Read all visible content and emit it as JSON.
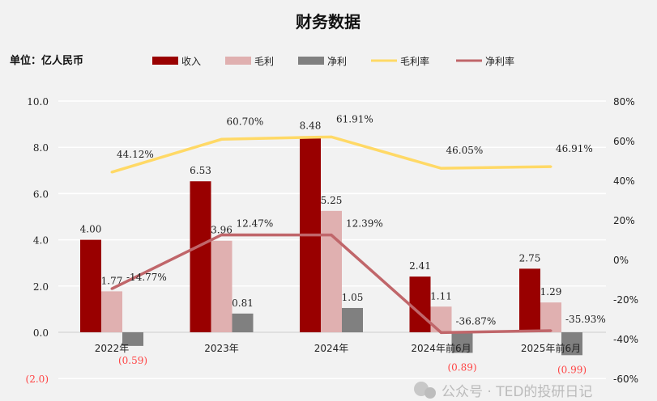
{
  "chart_data": {
    "type": "bar",
    "title": "财务数据",
    "unit_label": "单位：亿人民币",
    "categories": [
      "2022年",
      "2023年",
      "2024年",
      "2024年前6月",
      "2025年前6月"
    ],
    "series": [
      {
        "name": "收入",
        "kind": "bar",
        "axis": "left",
        "color": "#990000",
        "values": [
          4.0,
          6.53,
          8.48,
          2.41,
          2.75
        ],
        "labels": [
          "4.00",
          "6.53",
          "8.48",
          "2.41",
          "2.75"
        ]
      },
      {
        "name": "毛利",
        "kind": "bar",
        "axis": "left",
        "color": "#e0b0b0",
        "values": [
          1.77,
          3.96,
          5.25,
          1.11,
          1.29
        ],
        "labels": [
          "1.77",
          "3.96",
          "5.25",
          "1.11",
          "1.29"
        ]
      },
      {
        "name": "净利",
        "kind": "bar",
        "axis": "left",
        "color": "#808080",
        "values": [
          -0.59,
          0.81,
          1.05,
          -0.89,
          -0.99
        ],
        "labels": [
          "(0.59)",
          "0.81",
          "1.05",
          "(0.89)",
          "(0.99)"
        ]
      },
      {
        "name": "毛利率",
        "kind": "line",
        "axis": "right",
        "color": "#ffd966",
        "values": [
          44.12,
          60.7,
          61.91,
          46.05,
          46.91
        ],
        "labels": [
          "44.12%",
          "60.70%",
          "61.91%",
          "46.05%",
          "46.91%"
        ]
      },
      {
        "name": "净利率",
        "kind": "line",
        "axis": "right",
        "color": "#c0666a",
        "values": [
          -14.77,
          12.47,
          12.39,
          -36.87,
          -35.93
        ],
        "labels": [
          "-14.77%",
          "12.47%",
          "12.39%",
          "-36.87%",
          "-35.93%"
        ]
      }
    ],
    "left_axis": {
      "ylim": [
        -2,
        10
      ],
      "ticks": [
        "(2.0)",
        "0.0",
        "2.0",
        "4.0",
        "6.0",
        "8.0",
        "10.0"
      ],
      "tick_values": [
        -2,
        0,
        2,
        4,
        6,
        8,
        10
      ]
    },
    "right_axis": {
      "ylim": [
        -60,
        80
      ],
      "ticks": [
        "-60%",
        "-40%",
        "-20%",
        "0%",
        "20%",
        "40%",
        "60%",
        "80%"
      ],
      "tick_values": [
        -60,
        -40,
        -20,
        0,
        20,
        40,
        60,
        80
      ]
    },
    "grid": true,
    "legend_placement": "top"
  },
  "watermark": "公众号 · TED的投研日记"
}
